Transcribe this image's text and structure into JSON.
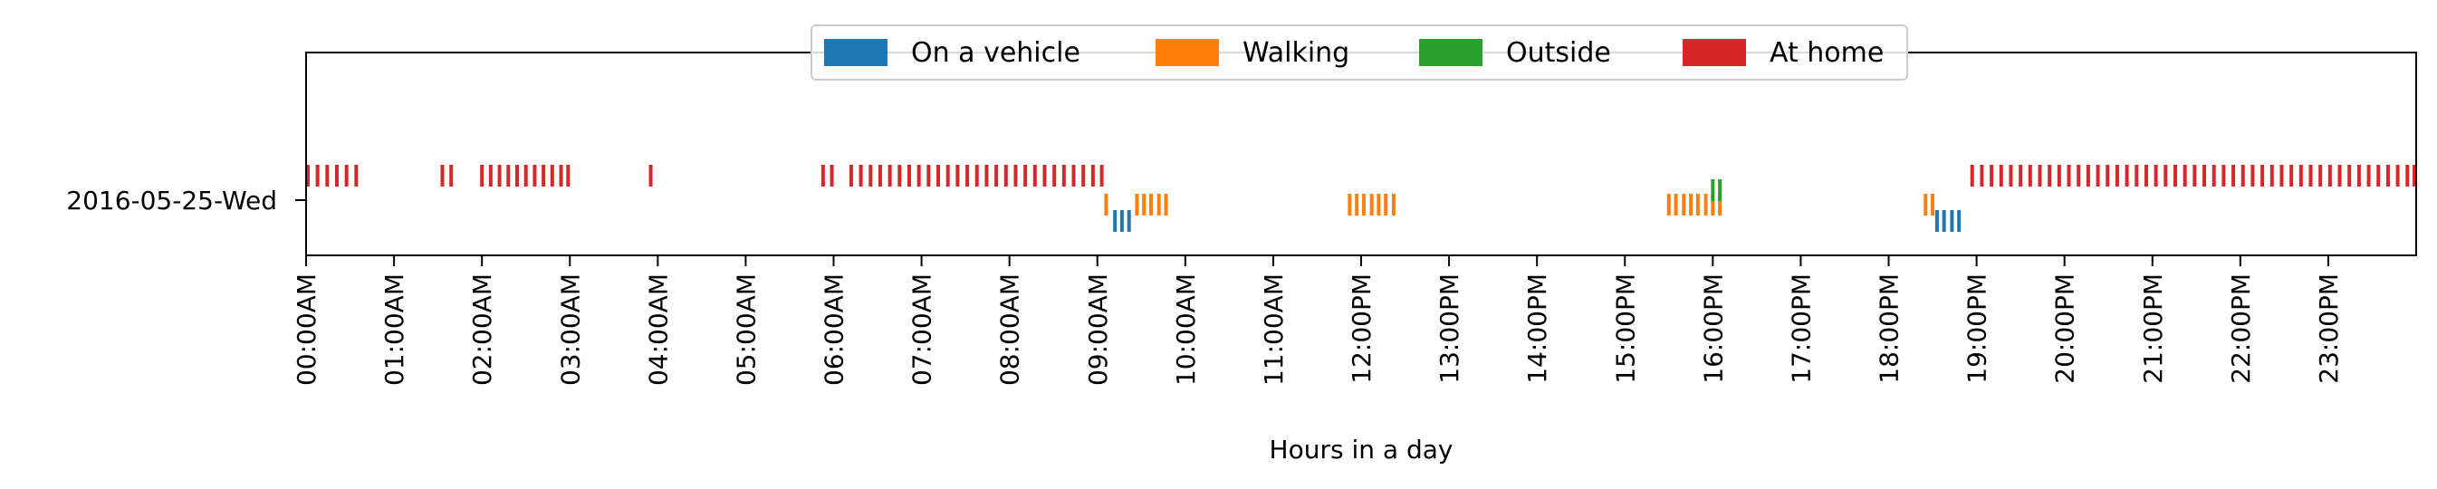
{
  "chart_data": {
    "type": "event-raster",
    "title": "",
    "xlabel": "Hours in a day",
    "ylabel": "",
    "xlim": [
      0,
      24
    ],
    "row_label": "2016-05-25-Wed",
    "x_tick_labels": [
      "00:00AM",
      "01:00AM",
      "02:00AM",
      "03:00AM",
      "04:00AM",
      "05:00AM",
      "06:00AM",
      "07:00AM",
      "08:00AM",
      "09:00AM",
      "10:00AM",
      "11:00AM",
      "12:00PM",
      "13:00PM",
      "14:00PM",
      "15:00PM",
      "16:00PM",
      "17:00PM",
      "18:00PM",
      "19:00PM",
      "20:00PM",
      "21:00PM",
      "22:00PM",
      "23:00PM"
    ],
    "grid": false,
    "legend_position": "top-center",
    "series": [
      {
        "name": "On a vehicle",
        "color": "#1f77b4",
        "level": 0,
        "events": [
          9.2,
          9.28,
          9.36,
          18.55,
          18.63,
          18.72,
          18.8
        ]
      },
      {
        "name": "Walking",
        "color": "#ff7f0e",
        "level": 1,
        "events": [
          9.1,
          9.45,
          9.53,
          9.61,
          9.7,
          9.78,
          11.87,
          11.95,
          12.03,
          12.12,
          12.2,
          12.28,
          12.37,
          15.5,
          15.58,
          15.67,
          15.75,
          15.83,
          15.92,
          16.0,
          16.08,
          18.42,
          18.5
        ]
      },
      {
        "name": "Outside",
        "color": "#2ca02c",
        "level": 2,
        "events": [
          16.0,
          16.08
        ]
      },
      {
        "name": "At home",
        "color": "#d62728",
        "level": 3,
        "events": [
          0.02,
          0.13,
          0.24,
          0.35,
          0.46,
          0.57,
          1.55,
          1.65,
          2.0,
          2.1,
          2.2,
          2.3,
          2.4,
          2.5,
          2.6,
          2.7,
          2.8,
          2.9,
          2.98,
          3.92,
          5.88,
          5.98,
          6.2,
          6.31,
          6.42,
          6.53,
          6.64,
          6.75,
          6.86,
          6.97,
          7.08,
          7.19,
          7.3,
          7.41,
          7.52,
          7.63,
          7.74,
          7.85,
          7.96,
          8.07,
          8.18,
          8.29,
          8.4,
          8.51,
          8.62,
          8.73,
          8.84,
          8.95,
          9.05,
          18.95,
          19.06,
          19.17,
          19.28,
          19.39,
          19.5,
          19.61,
          19.72,
          19.83,
          19.94,
          20.05,
          20.16,
          20.27,
          20.38,
          20.49,
          20.6,
          20.71,
          20.82,
          20.93,
          21.04,
          21.15,
          21.26,
          21.37,
          21.48,
          21.59,
          21.7,
          21.81,
          21.92,
          22.03,
          22.14,
          22.25,
          22.36,
          22.47,
          22.58,
          22.69,
          22.8,
          22.91,
          23.02,
          23.13,
          23.24,
          23.35,
          23.46,
          23.57,
          23.68,
          23.79,
          23.9,
          23.98
        ]
      }
    ]
  }
}
